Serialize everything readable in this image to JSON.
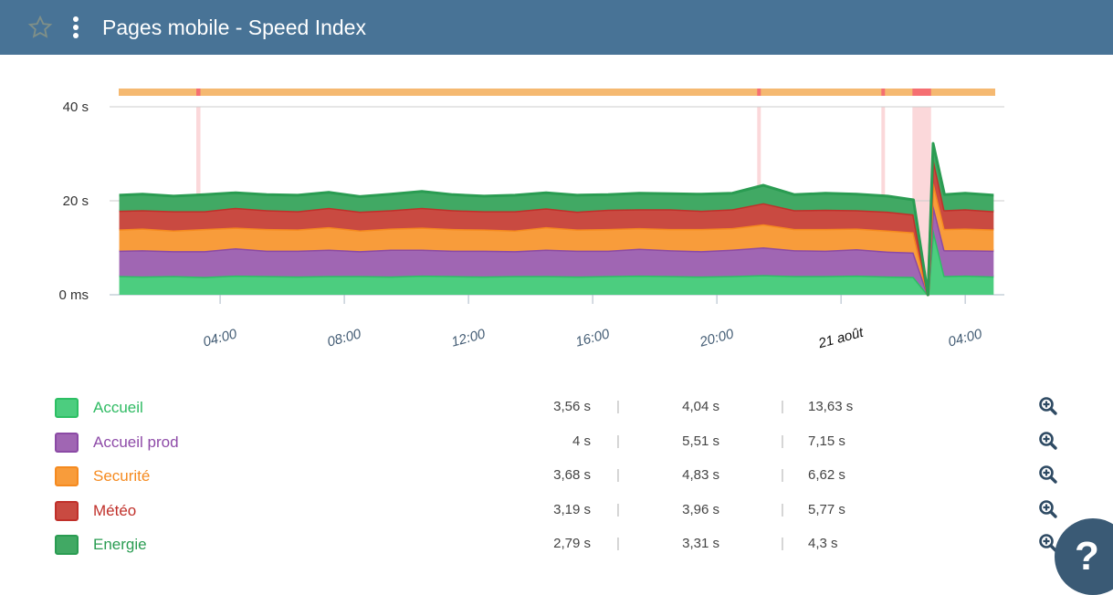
{
  "header": {
    "title": "Pages mobile - Speed Index",
    "star_icon": "star-outline-icon",
    "menu_icon": "vertical-dots-icon"
  },
  "chart_data": {
    "type": "area",
    "stacked": true,
    "ylim": [
      0,
      40
    ],
    "y_ticks": [
      "0 ms",
      "20 s",
      "40 s"
    ],
    "y_tick_values": [
      0,
      20,
      40
    ],
    "x_range": [
      "20/08 00:44",
      "21/08 04:58"
    ],
    "x_ticks": [
      {
        "t": "20/08 04:00",
        "label": "04:00"
      },
      {
        "t": "20/08 08:00",
        "label": "08:00"
      },
      {
        "t": "20/08 12:00",
        "label": "12:00"
      },
      {
        "t": "20/08 16:00",
        "label": "16:00"
      },
      {
        "t": "20/08 20:00",
        "label": "20:00"
      },
      {
        "t": "21/08 00:00",
        "label": "21 août",
        "bold": true
      },
      {
        "t": "21/08 04:00",
        "label": "04:00"
      }
    ],
    "x": [
      "20/08 00:45",
      "20/08 01:30",
      "20/08 02:30",
      "20/08 03:30",
      "20/08 04:30",
      "20/08 05:30",
      "20/08 06:30",
      "20/08 07:30",
      "20/08 08:30",
      "20/08 09:30",
      "20/08 10:30",
      "20/08 11:30",
      "20/08 12:30",
      "20/08 13:30",
      "20/08 14:30",
      "20/08 15:30",
      "20/08 16:30",
      "20/08 17:30",
      "20/08 18:30",
      "20/08 19:30",
      "20/08 20:30",
      "20/08 21:30",
      "20/08 22:30",
      "20/08 23:30",
      "21/08 00:30",
      "21/08 01:30",
      "21/08 02:20",
      "21/08 02:48",
      "21/08 02:58",
      "21/08 03:20",
      "21/08 04:00",
      "21/08 04:55"
    ],
    "series": [
      {
        "name": "Accueil",
        "color": "#4ccd7f",
        "line": "#2dbf64",
        "values": [
          4,
          3.9,
          4,
          3.8,
          4.1,
          4,
          3.9,
          4,
          4,
          3.9,
          4.1,
          4,
          3.9,
          4,
          4,
          3.9,
          4,
          4.1,
          4,
          3.9,
          4,
          4.2,
          4,
          4,
          4.1,
          3.9,
          3.8,
          0,
          14,
          4,
          4.1,
          3.9
        ]
      },
      {
        "name": "Accueil prod",
        "color": "#a066b3",
        "line": "#8b4aa5",
        "values": [
          5.4,
          5.6,
          5.3,
          5.5,
          5.8,
          5.4,
          5.5,
          5.6,
          5.3,
          5.7,
          5.5,
          5.4,
          5.5,
          5.3,
          5.6,
          5.5,
          5.4,
          5.7,
          5.5,
          5.4,
          5.6,
          5.9,
          5.5,
          5.4,
          5.6,
          5.3,
          5.2,
          0,
          5.2,
          5.5,
          5.4,
          5.5
        ]
      },
      {
        "name": "Securité",
        "color": "#f89c3b",
        "line": "#f58a1f",
        "values": [
          4.5,
          4.6,
          4.4,
          4.7,
          4.4,
          4.6,
          4.5,
          4.8,
          4.4,
          4.5,
          4.7,
          4.6,
          4.5,
          4.4,
          4.8,
          4.5,
          4.6,
          4.4,
          4.5,
          4.7,
          4.6,
          4.9,
          4.5,
          4.6,
          4.4,
          4.5,
          4.3,
          0,
          5,
          4.5,
          4.6,
          4.5
        ]
      },
      {
        "name": "Météo",
        "color": "#c94a41",
        "line": "#c0302a",
        "values": [
          4,
          3.9,
          4.1,
          3.8,
          4.2,
          4,
          3.9,
          4.1,
          4,
          3.9,
          4.2,
          4,
          3.9,
          4.1,
          4,
          3.8,
          4.1,
          4,
          4.2,
          3.9,
          4,
          4.5,
          4,
          4.1,
          3.9,
          4,
          3.8,
          0,
          5,
          4,
          4.1,
          3.9
        ]
      },
      {
        "name": "Energie",
        "color": "#41a964",
        "line": "#2a9c52",
        "values": [
          3.3,
          3.4,
          3.2,
          3.5,
          3.2,
          3.3,
          3.4,
          3.3,
          3.2,
          3.4,
          3.5,
          3.3,
          3.2,
          3.4,
          3.3,
          3.5,
          3.2,
          3.4,
          3.3,
          3.5,
          3.4,
          3.8,
          3.3,
          3.5,
          3.4,
          3.3,
          3.1,
          0,
          3,
          3.3,
          3.4,
          3.4
        ]
      }
    ],
    "alerts": {
      "bar_color": "#f5b971",
      "alert_color": "#f56f72",
      "band_color": "#fbd8da",
      "periods": [
        [
          "20/08 03:14",
          "20/08 03:22"
        ],
        [
          "20/08 21:18",
          "20/08 21:25"
        ],
        [
          "21/08 01:18",
          "21/08 01:25"
        ],
        [
          "21/08 02:18",
          "21/08 02:54"
        ]
      ]
    }
  },
  "legend": {
    "zoom_icon": "zoom-in-icon",
    "rows": [
      {
        "name": "Accueil",
        "color": "#4ccd7f",
        "border": "#2dbf64",
        "text_color": "#2fbb63",
        "v1": "3,56 s",
        "v2": "4,04 s",
        "v3": "13,63 s"
      },
      {
        "name": "Accueil prod",
        "color": "#a066b3",
        "border": "#8b4aa5",
        "text_color": "#8e4ba8",
        "v1": "4 s",
        "v2": "5,51 s",
        "v3": "7,15 s"
      },
      {
        "name": "Securité",
        "color": "#f89c3b",
        "border": "#f58a1f",
        "text_color": "#f58a1f",
        "v1": "3,68 s",
        "v2": "4,83 s",
        "v3": "6,62 s"
      },
      {
        "name": "Météo",
        "color": "#c94a41",
        "border": "#c0302a",
        "text_color": "#c0302a",
        "v1": "3,19 s",
        "v2": "3,96 s",
        "v3": "5,77 s"
      },
      {
        "name": "Energie",
        "color": "#41a964",
        "border": "#2a9c52",
        "text_color": "#2a9c52",
        "v1": "2,79 s",
        "v2": "3,31 s",
        "v3": "4,3 s"
      }
    ]
  },
  "help": {
    "label": "?"
  }
}
